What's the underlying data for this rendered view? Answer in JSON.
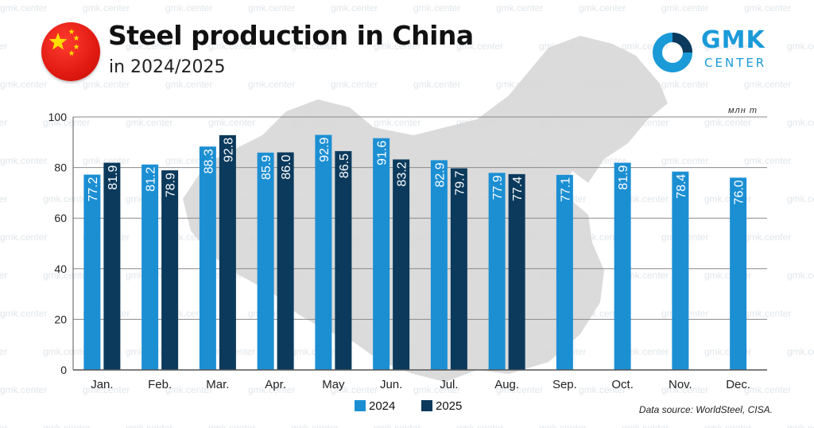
{
  "header": {
    "title": "Steel production in China",
    "subtitle": "in 2024/2025"
  },
  "logo": {
    "name": "GMK",
    "sub": "CENTER"
  },
  "watermark": "gmk.center",
  "unit_label": "млн т",
  "source": "Data source: WorldSteel, CISA.",
  "colors": {
    "series_2024": "#1c8fd3",
    "series_2025": "#0b3a5c",
    "grid": "#8a8a8a",
    "axis": "#555555",
    "flag_red": "#e01a12",
    "flag_star": "#ffde00",
    "brand": "#1b9ad8",
    "map": "#d7d7d7"
  },
  "icons": {
    "flag": "china-flag-icon",
    "logo": "gmk-center-logo-icon"
  },
  "chart_data": {
    "type": "bar",
    "title": "Steel production in China",
    "subtitle": "in 2024/2025",
    "xlabel": "",
    "ylabel": "",
    "unit": "млн т",
    "ylim": [
      0,
      100
    ],
    "yticks": [
      0,
      20,
      40,
      60,
      80,
      100
    ],
    "grid": true,
    "legend_position": "bottom-center",
    "categories": [
      "Jan.",
      "Feb.",
      "Mar.",
      "Apr.",
      "May",
      "Jun.",
      "Jul.",
      "Aug.",
      "Sep.",
      "Oct.",
      "Nov.",
      "Dec."
    ],
    "series": [
      {
        "name": "2024",
        "color": "#1c8fd3",
        "values": [
          77.2,
          81.2,
          88.3,
          85.9,
          92.9,
          91.6,
          82.9,
          77.9,
          77.1,
          81.9,
          78.4,
          76.0
        ],
        "labels": [
          "77.2",
          "81.2",
          "88.3",
          "85.9",
          "92.9",
          "91.6",
          "82.9",
          "77.9",
          "77.1",
          "81.9",
          "78.4",
          "76.0"
        ]
      },
      {
        "name": "2025",
        "color": "#0b3a5c",
        "values": [
          81.9,
          78.9,
          92.8,
          86.0,
          86.5,
          83.2,
          79.7,
          77.4,
          null,
          null,
          null,
          null
        ],
        "labels": [
          "81.9",
          "78.9",
          "92.8",
          "86.0",
          "86.5",
          "83.2",
          "79.7",
          "77.4",
          "",
          "",
          "",
          ""
        ]
      }
    ]
  }
}
